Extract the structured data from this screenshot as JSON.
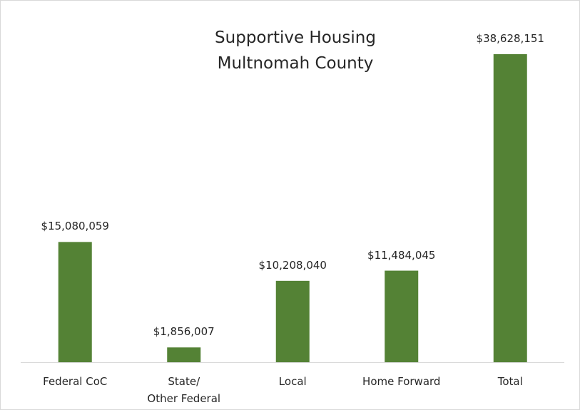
{
  "chart_data": {
    "type": "bar",
    "title": "Supportive Housing\nMultnomah County",
    "categories": [
      "Federal CoC",
      "State/\nOther Federal",
      "Local",
      "Home Forward",
      "Total"
    ],
    "values": [
      15080059,
      1856007,
      10208040,
      11484045,
      38628151
    ],
    "value_labels": [
      "$15,080,059",
      "$1,856,007",
      "$10,208,040",
      "$11,484,045",
      "$38,628,151"
    ],
    "color": "#548235"
  }
}
